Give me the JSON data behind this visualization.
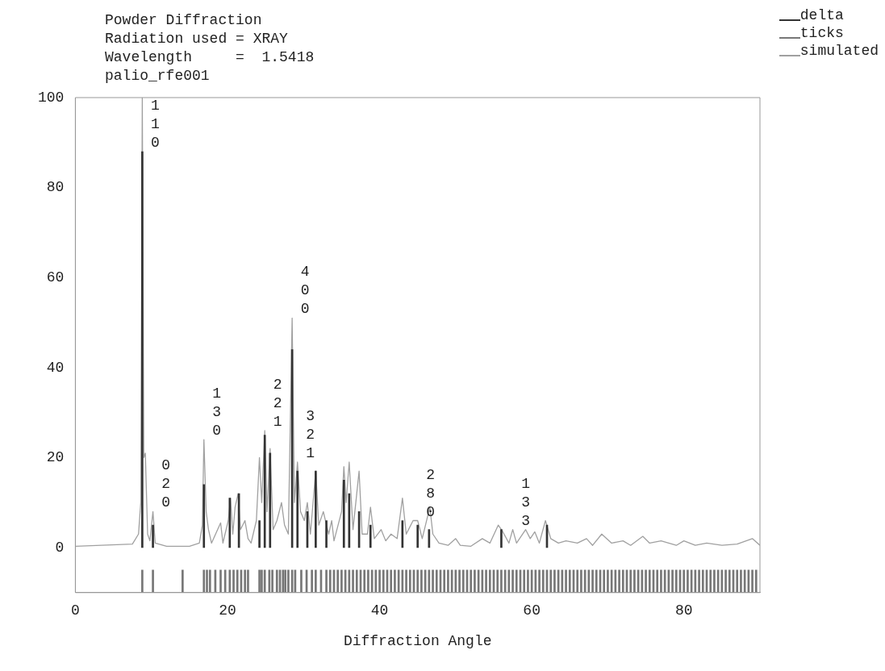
{
  "chart_data": {
    "type": "line",
    "title": "Powder Diffraction",
    "subtitle": "Radiation used = XRAY",
    "xlabel": "Diffraction Angle",
    "annotations": [
      "Wavelength     =  1.5418",
      "palio_rfe001",
      {
        "text": "110",
        "x": 8.8,
        "y": 88
      },
      {
        "text": "020",
        "x": 10.2,
        "y": 8
      },
      {
        "text": "130",
        "x": 16.9,
        "y": 24
      },
      {
        "text": "221",
        "x": 24.9,
        "y": 26
      },
      {
        "text": "400",
        "x": 28.5,
        "y": 51
      },
      {
        "text": "321",
        "x": 29.2,
        "y": 19
      },
      {
        "text": "280",
        "x": 45.0,
        "y": 6
      },
      {
        "text": "133",
        "x": 57.5,
        "y": 4
      }
    ],
    "xlim": [
      0,
      90
    ],
    "xticks": [
      0,
      20,
      40,
      60,
      80
    ],
    "ylim": [
      -10,
      100
    ],
    "yticks": [
      0,
      20,
      40,
      60,
      80,
      100
    ],
    "grid": false,
    "legend": "top right",
    "series": [
      {
        "name": "delta",
        "type": "bar",
        "color": "#333333",
        "x": [
          8.8,
          10.2,
          16.9,
          20.3,
          21.5,
          24.2,
          24.9,
          25.6,
          28.5,
          29.2,
          30.5,
          31.6,
          33.0,
          35.3,
          36.0,
          37.3,
          38.8,
          43.0,
          45.0,
          46.5,
          56.0,
          62.0
        ],
        "values": [
          88,
          5,
          14,
          11,
          12,
          6,
          25,
          21,
          44,
          17,
          8,
          17,
          6,
          15,
          12,
          8,
          5,
          6,
          5,
          4,
          4,
          5
        ]
      },
      {
        "name": "ticks",
        "type": "bar",
        "color": "#777777",
        "x": [
          8.8,
          10.2,
          14.1,
          16.9,
          17.3,
          17.7,
          18.4,
          19.1,
          19.7,
          20.3,
          20.8,
          21.3,
          21.8,
          22.3,
          22.7,
          24.2,
          24.5,
          24.9,
          25.5,
          25.9,
          26.5,
          26.9,
          27.3,
          27.6,
          28.0,
          28.5,
          28.9,
          29.7,
          30.4,
          31.1,
          31.6,
          32.3,
          33.0,
          33.5,
          34.0,
          34.5,
          35.0,
          35.5,
          36.0,
          36.5,
          37.0,
          37.5,
          38.0,
          38.5,
          39.0,
          39.5,
          40.0,
          40.5,
          41.0,
          41.5,
          42.0,
          42.5,
          43.0,
          43.5,
          44.0,
          44.5,
          45.0,
          45.5,
          46.0,
          46.5,
          47.0,
          47.5,
          48.0,
          48.5,
          49.0,
          49.5,
          50.0,
          50.5,
          51.0,
          51.5,
          52.0,
          52.5,
          53.0,
          53.5,
          54.0,
          54.5,
          55.0,
          55.5,
          56.0,
          56.5,
          57.0,
          57.5,
          58.0,
          58.5,
          59.0,
          59.5,
          60.0,
          60.5,
          61.0,
          61.5,
          62.0,
          62.5,
          63.0,
          63.5,
          64.0,
          64.5,
          65.0,
          65.5,
          66.0,
          66.5,
          67.0,
          67.5,
          68.0,
          68.5,
          69.0,
          69.5,
          70.0,
          70.5,
          71.0,
          71.5,
          72.0,
          72.5,
          73.0,
          73.5,
          74.0,
          74.5,
          75.0,
          75.5,
          76.0,
          76.5,
          77.0,
          77.5,
          78.0,
          78.5,
          79.0,
          79.5,
          80.0,
          80.5,
          81.0,
          81.5,
          82.0,
          82.5,
          83.0,
          83.5,
          84.0,
          84.5,
          85.0,
          85.5,
          86.0,
          86.5,
          87.0,
          87.5,
          88.0,
          88.5,
          89.0,
          89.5
        ],
        "base": [
          -10,
          -10,
          -10,
          -10,
          -10,
          -10,
          -10,
          -10,
          -10,
          -10,
          -10,
          -10,
          -10,
          -10,
          -10,
          -10,
          -10,
          -10,
          -10,
          -10,
          -10,
          -10,
          -10,
          -10,
          -10,
          -10,
          -10,
          -10,
          -10,
          -10,
          -10,
          -10,
          -10,
          -10,
          -10,
          -10,
          -10,
          -10,
          -10,
          -10,
          -10,
          -10,
          -10,
          -10,
          -10,
          -10,
          -10,
          -10,
          -10,
          -10,
          -10,
          -10,
          -10,
          -10,
          -10,
          -10,
          -10,
          -10,
          -10,
          -10,
          -10,
          -10,
          -10,
          -10,
          -10,
          -10,
          -10,
          -10,
          -10,
          -10,
          -10,
          -10,
          -10,
          -10,
          -10,
          -10,
          -10,
          -10,
          -10,
          -10,
          -10,
          -10,
          -10,
          -10,
          -10,
          -10,
          -10,
          -10,
          -10,
          -10,
          -10,
          -10,
          -10,
          -10,
          -10,
          -10,
          -10,
          -10,
          -10,
          -10,
          -10,
          -10,
          -10,
          -10,
          -10,
          -10,
          -10,
          -10,
          -10,
          -10,
          -10,
          -10,
          -10,
          -10,
          -10,
          -10,
          -10,
          -10,
          -10,
          -10,
          -10,
          -10,
          -10,
          -10,
          -10,
          -10,
          -10,
          -10,
          -10,
          -10,
          -10,
          -10,
          -10,
          -10,
          -10,
          -10,
          -10,
          -10,
          -10,
          -10,
          -10,
          -10,
          -10,
          -10,
          -10,
          -10
        ],
        "values": [
          5,
          5,
          5,
          5,
          5,
          5,
          5,
          5,
          5,
          5,
          5,
          5,
          5,
          5,
          5,
          5,
          5,
          5,
          5,
          5,
          5,
          5,
          5,
          5,
          5,
          5,
          5,
          5,
          5,
          5,
          5,
          5,
          5,
          5,
          5,
          5,
          5,
          5,
          5,
          5,
          5,
          5,
          5,
          5,
          5,
          5,
          5,
          5,
          5,
          5,
          5,
          5,
          5,
          5,
          5,
          5,
          5,
          5,
          5,
          5,
          5,
          5,
          5,
          5,
          5,
          5,
          5,
          5,
          5,
          5,
          5,
          5,
          5,
          5,
          5,
          5,
          5,
          5,
          5,
          5,
          5,
          5,
          5,
          5,
          5,
          5,
          5,
          5,
          5,
          5,
          5,
          5,
          5,
          5,
          5,
          5,
          5,
          5,
          5,
          5,
          5,
          5,
          5,
          5,
          5,
          5,
          5,
          5,
          5,
          5,
          5,
          5,
          5,
          5,
          5,
          5,
          5,
          5,
          5,
          5,
          5,
          5,
          5,
          5,
          5,
          5,
          5,
          5,
          5,
          5,
          5,
          5,
          5,
          5,
          5,
          5,
          5,
          5,
          5,
          5,
          5,
          5,
          5,
          5,
          5,
          5
        ]
      },
      {
        "name": "simulated",
        "color": "#a0a0a0",
        "x": [
          0,
          7.5,
          8.3,
          8.6,
          8.8,
          9.0,
          9.2,
          9.5,
          9.8,
          10.2,
          10.5,
          12,
          15,
          16.3,
          16.7,
          16.9,
          17.2,
          17.5,
          17.9,
          19.1,
          19.4,
          20.1,
          20.4,
          20.7,
          21.0,
          21.4,
          21.7,
          22.3,
          22.7,
          23.1,
          23.8,
          24.2,
          24.5,
          24.9,
          25.2,
          25.6,
          26.0,
          26.5,
          27.1,
          27.5,
          28.0,
          28.5,
          28.8,
          29.2,
          29.6,
          30.1,
          30.5,
          30.9,
          31.6,
          32.0,
          32.6,
          33.3,
          33.7,
          34.0,
          35.0,
          35.3,
          35.6,
          36.0,
          36.5,
          37.3,
          37.7,
          38.4,
          38.8,
          39.3,
          40.2,
          40.8,
          41.5,
          42.3,
          43.0,
          43.5,
          44.4,
          45.0,
          45.6,
          46.6,
          47.0,
          47.8,
          49.0,
          50.0,
          50.6,
          52.0,
          53.5,
          54.5,
          55.6,
          56.2,
          57.0,
          57.5,
          58.0,
          59.2,
          59.8,
          60.4,
          61.0,
          61.8,
          62.5,
          63.5,
          64.5,
          66.0,
          67.2,
          68.0,
          69.2,
          70.5,
          72.0,
          73.0,
          74.6,
          75.5,
          77.0,
          79.0,
          80.0,
          81.5,
          83.0,
          85.0,
          87.0,
          89.0,
          90
        ],
        "values": [
          0.3,
          0.8,
          3,
          10,
          100,
          20,
          21,
          3,
          1.5,
          8,
          1,
          0.3,
          0.3,
          1,
          5,
          24,
          8,
          4,
          1,
          5.5,
          1,
          6,
          11,
          3,
          9,
          12,
          4,
          6,
          2,
          1,
          6,
          20,
          10,
          26,
          8,
          22,
          4,
          6,
          10,
          5,
          3,
          51,
          10,
          19,
          8,
          6,
          10,
          3,
          17,
          5,
          8,
          3,
          6,
          1.5,
          8,
          18,
          10,
          19,
          4,
          17,
          3,
          3,
          9,
          2,
          4,
          1.5,
          3,
          2,
          11,
          3,
          6,
          6,
          2,
          9,
          3,
          1,
          0.5,
          2,
          0.5,
          0.3,
          2,
          1,
          5,
          3.5,
          1,
          4,
          1,
          4,
          2,
          3.5,
          1,
          6,
          2,
          1,
          1.5,
          1,
          2,
          0.5,
          3,
          1,
          1.5,
          0.5,
          2.5,
          1,
          1.5,
          0.5,
          1.5,
          0.5,
          1,
          0.5,
          0.8,
          2,
          0.5
        ]
      }
    ]
  }
}
